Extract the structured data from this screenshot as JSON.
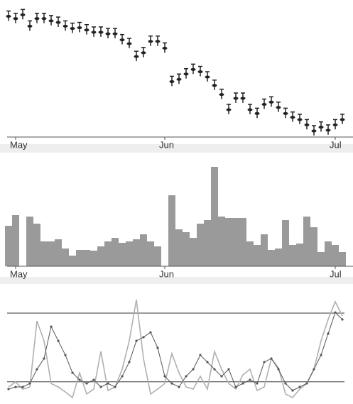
{
  "chart_data": [
    {
      "type": "ohlc",
      "categories": [
        null,
        "May",
        null,
        null,
        null,
        null,
        null,
        null,
        null,
        null,
        null,
        null,
        null,
        null,
        null,
        null,
        null,
        null,
        null,
        null,
        null,
        null,
        "Jun",
        null,
        null,
        null,
        null,
        null,
        null,
        null,
        null,
        null,
        null,
        null,
        null,
        null,
        null,
        null,
        null,
        null,
        null,
        null,
        null,
        null,
        null,
        null,
        "Jul",
        null
      ],
      "high": [
        158,
        155,
        160,
        145,
        155,
        155,
        152,
        150,
        145,
        142,
        143,
        140,
        137,
        137,
        135,
        135,
        127,
        122,
        105,
        110,
        125,
        125,
        116,
        72,
        75,
        82,
        88,
        85,
        78,
        67,
        55,
        35,
        50,
        50,
        35,
        30,
        42,
        45,
        38,
        30,
        25,
        22,
        15,
        7,
        12,
        8,
        15,
        22
      ],
      "low": [
        145,
        142,
        147,
        132,
        142,
        142,
        139,
        137,
        132,
        129,
        130,
        127,
        124,
        124,
        122,
        122,
        114,
        109,
        92,
        97,
        112,
        112,
        103,
        59,
        62,
        69,
        75,
        72,
        65,
        54,
        42,
        22,
        37,
        37,
        22,
        17,
        29,
        32,
        25,
        17,
        12,
        9,
        2,
        -6,
        -1,
        -5,
        2,
        9
      ],
      "close": [
        151,
        148,
        153,
        138,
        148,
        148,
        145,
        143,
        138,
        135,
        136,
        133,
        130,
        130,
        128,
        128,
        120,
        115,
        98,
        103,
        118,
        118,
        109,
        65,
        68,
        75,
        81,
        78,
        71,
        60,
        48,
        28,
        43,
        43,
        28,
        23,
        35,
        38,
        31,
        23,
        18,
        15,
        8,
        0,
        5,
        1,
        8,
        15
      ],
      "color": "#222",
      "ylim": [
        -8,
        165
      ]
    },
    {
      "type": "bar",
      "categories": [
        null,
        "May",
        null,
        null,
        null,
        null,
        null,
        null,
        null,
        null,
        null,
        null,
        null,
        null,
        null,
        null,
        null,
        null,
        null,
        null,
        null,
        null,
        "Jun",
        null,
        null,
        null,
        null,
        null,
        null,
        null,
        null,
        null,
        null,
        null,
        null,
        null,
        null,
        null,
        null,
        null,
        null,
        null,
        null,
        null,
        null,
        null,
        "Jul",
        null
      ],
      "values": [
        57,
        72,
        null,
        70,
        60,
        35,
        35,
        38,
        25,
        15,
        23,
        23,
        22,
        28,
        35,
        40,
        33,
        35,
        38,
        45,
        35,
        28,
        null,
        100,
        52,
        48,
        40,
        60,
        65,
        140,
        70,
        68,
        68,
        68,
        35,
        30,
        45,
        23,
        25,
        65,
        30,
        32,
        70,
        55,
        20,
        35,
        30,
        20
      ],
      "color": "#9a9a9a",
      "ylim": [
        0,
        150
      ]
    },
    {
      "type": "line",
      "categories": [
        null,
        null,
        null,
        null,
        null,
        null,
        null,
        null,
        null,
        null,
        null,
        null,
        null,
        null,
        null,
        null,
        null,
        null,
        null,
        null,
        null,
        null,
        null,
        null,
        null,
        null,
        null,
        null,
        null,
        null,
        null,
        null,
        null,
        null,
        null,
        null,
        null,
        null,
        null,
        null,
        null,
        null,
        null,
        null,
        null,
        null,
        null,
        null
      ],
      "series": [
        {
          "color": "#b0b0b0",
          "values": [
            12.5,
            16.9,
            10.6,
            12.5,
            70.6,
            53.1,
            15.6,
            12.5,
            8.1,
            3.1,
            25,
            6.3,
            10.6,
            43.8,
            9.4,
            12.5,
            28.1,
            53.1,
            89.4,
            37.5,
            6.3,
            10.6,
            15.6,
            41.9,
            25,
            12.5,
            10.6,
            21.9,
            10.6,
            43.8,
            28.1,
            15.6,
            10.6,
            23.1,
            28.1,
            9.4,
            12.5,
            37.5,
            29.4,
            6.3,
            3.1,
            10.6,
            15.6,
            28.1,
            53.1,
            71.9,
            87.5,
            75
          ]
        },
        {
          "color": "#555555",
          "values": [
            10.6,
            12.5,
            12.5,
            15.6,
            28.1,
            37.5,
            65.6,
            53.1,
            40.6,
            25,
            18.8,
            15.6,
            18.8,
            12.5,
            15.6,
            12.5,
            21.9,
            34.4,
            53.1,
            56.3,
            60.6,
            46.9,
            21.9,
            15.6,
            12.5,
            21.9,
            28.1,
            40.6,
            34.4,
            28.1,
            21.9,
            28.1,
            12.5,
            15.6,
            18.8,
            15.6,
            34.4,
            37.5,
            28.1,
            15.6,
            9.4,
            12.5,
            15.6,
            28.1,
            40.6,
            59.4,
            78.1,
            71.9
          ]
        }
      ],
      "reference_lines": [
        77.5,
        17
      ],
      "ylim": [
        0,
        100
      ]
    }
  ]
}
